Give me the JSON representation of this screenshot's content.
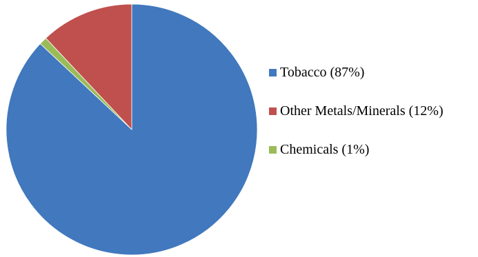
{
  "chart_data": {
    "type": "pie",
    "title": "",
    "start_angle_deg": 0,
    "direction": "clockwise",
    "legend_position": "right",
    "slices": [
      {
        "label": "Tobacco (87%)",
        "value": 87,
        "color": "#4178BE"
      },
      {
        "label": "Chemicals (1%)",
        "value": 1,
        "color": "#9BBB59"
      },
      {
        "label": "Other Metals/Minerals (12%)",
        "value": 12,
        "color": "#C0504D"
      }
    ],
    "legend": [
      {
        "label": "Tobacco (87%)",
        "color": "#4178BE"
      },
      {
        "label": "Other Metals/Minerals (12%)",
        "color": "#C0504D"
      },
      {
        "label": "Chemicals (1%)",
        "color": "#9BBB59"
      }
    ]
  }
}
